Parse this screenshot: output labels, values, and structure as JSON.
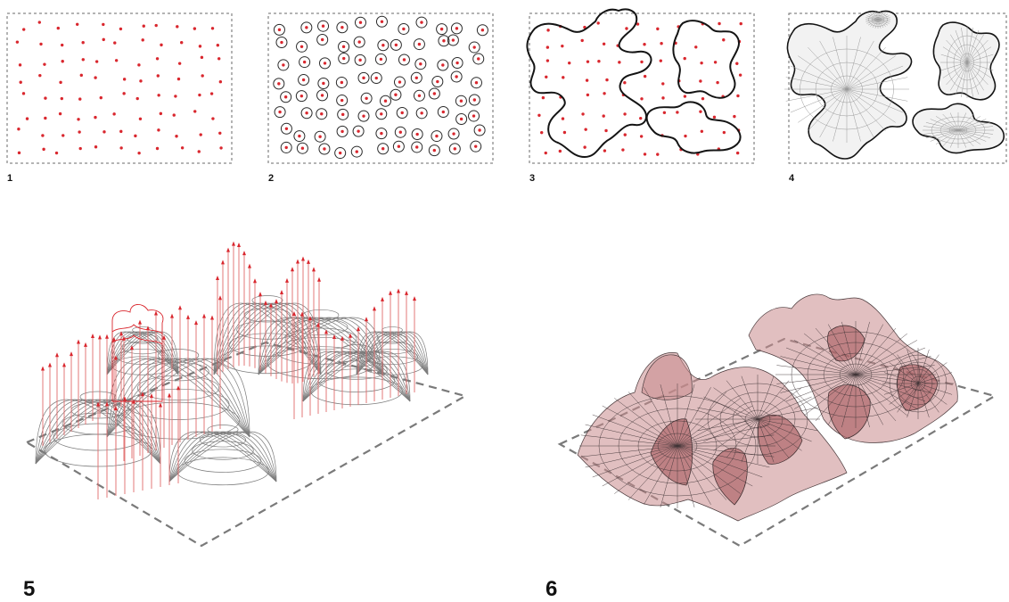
{
  "steps": [
    {
      "label": "1",
      "description": ""
    },
    {
      "label": "2",
      "description": ""
    },
    {
      "label": "3",
      "description": ""
    },
    {
      "label": "4",
      "description": ""
    },
    {
      "label": "5",
      "description": ""
    },
    {
      "label": "6",
      "description": ""
    }
  ],
  "colors": {
    "point": "#d9272e",
    "frame": "#6a6a6a",
    "outline": "#141414",
    "shell": "#c98a8c"
  }
}
